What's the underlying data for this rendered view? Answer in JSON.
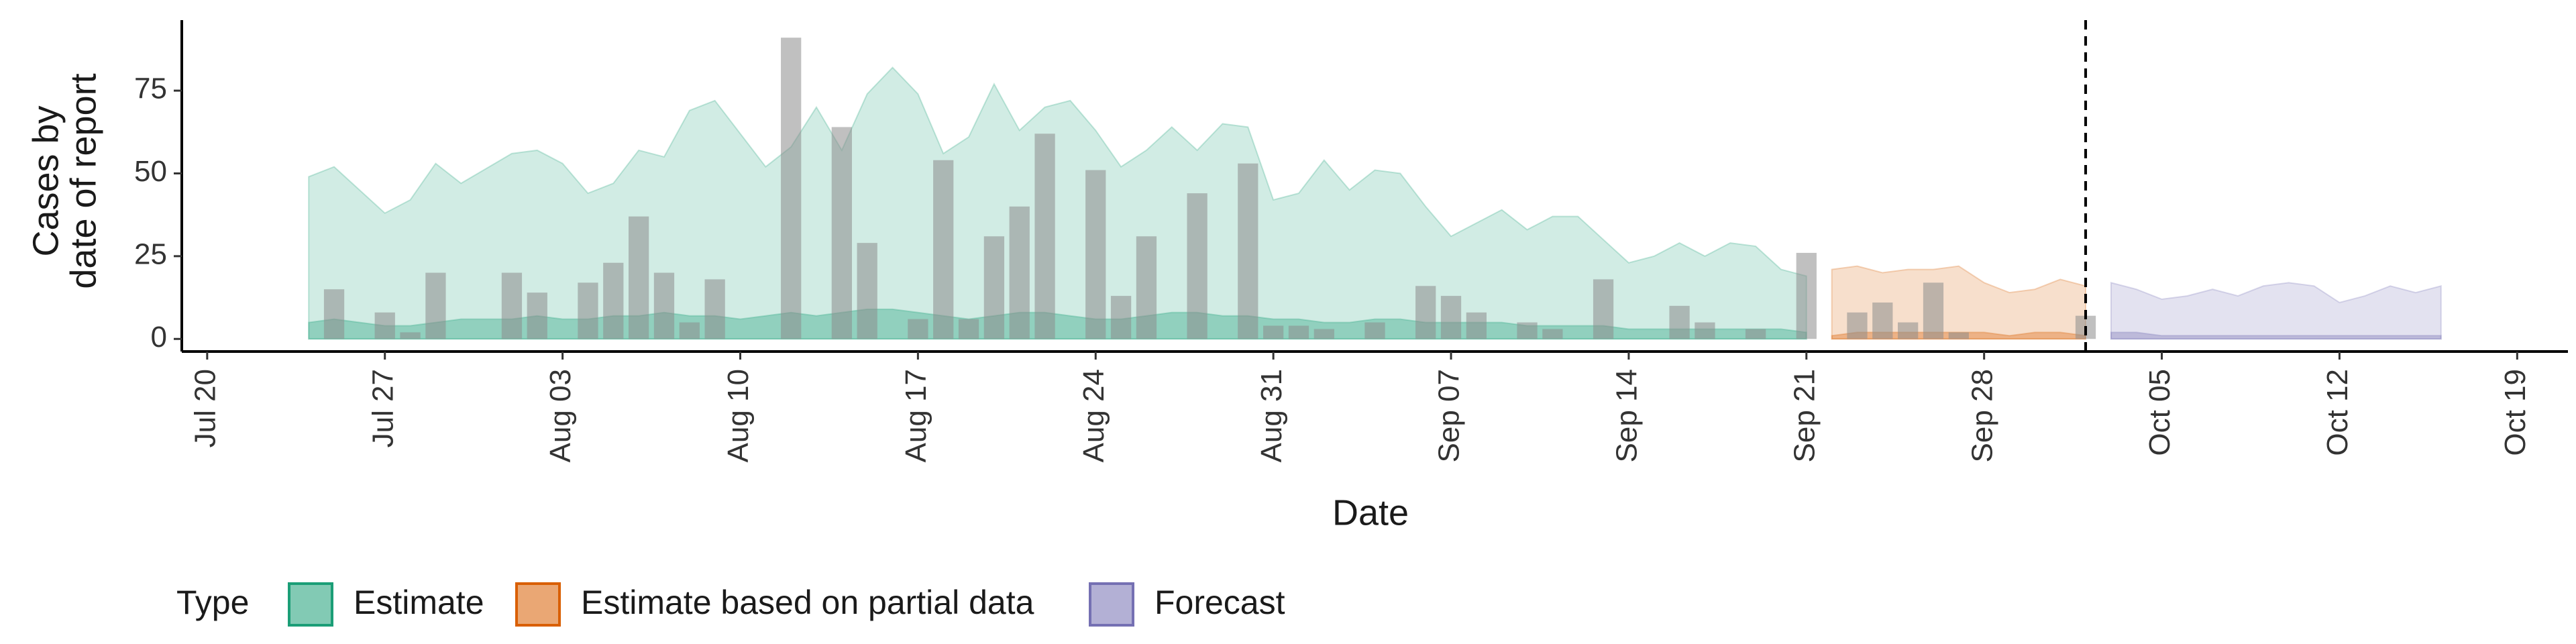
{
  "chart_data": {
    "type": "ribbon",
    "x_label": "Date",
    "y_label": [
      "Cases by",
      "date of report"
    ],
    "legend_title": "Type",
    "legend_position": "bottom",
    "xlim": [
      "Jul 19",
      "Oct 21"
    ],
    "xticks": [
      "Jul 20",
      "Jul 27",
      "Aug 03",
      "Aug 10",
      "Aug 17",
      "Aug 24",
      "Aug 31",
      "Sep 07",
      "Sep 14",
      "Sep 21",
      "Sep 28",
      "Oct 05",
      "Oct 12",
      "Oct 19"
    ],
    "ylim": [
      -3.8,
      96.3
    ],
    "yticks": [
      0,
      25,
      50,
      75
    ],
    "forecast_date": "Oct 2",
    "reported": {
      "color": "#8c8c8c",
      "x": [
        "Jul 25",
        "Jul 27",
        "Jul 28",
        "Jul 29",
        "Aug 1",
        "Aug 2",
        "Aug 4",
        "Aug 5",
        "Aug 6",
        "Aug 7",
        "Aug 8",
        "Aug 9",
        "Aug 12",
        "Aug 14",
        "Aug 15",
        "Aug 17",
        "Aug 18",
        "Aug 19",
        "Aug 20",
        "Aug 21",
        "Aug 22",
        "Aug 24",
        "Aug 25",
        "Aug 26",
        "Aug 28",
        "Aug 30",
        "Aug 31",
        "Sep 1",
        "Sep 2",
        "Sep 4",
        "Sep 6",
        "Sep 7",
        "Sep 8",
        "Sep 10",
        "Sep 11",
        "Sep 13",
        "Sep 16",
        "Sep 17",
        "Sep 19",
        "Sep 21",
        "Sep 23",
        "Sep 24",
        "Sep 25",
        "Sep 26",
        "Sep 27",
        "Oct 2"
      ],
      "values": [
        15,
        8,
        2,
        20,
        20,
        14,
        17,
        23,
        37,
        20,
        5,
        18,
        91,
        64,
        29,
        6,
        54,
        6,
        31,
        40,
        62,
        51,
        13,
        31,
        44,
        53,
        4,
        4,
        3,
        5,
        16,
        13,
        8,
        5,
        3,
        18,
        10,
        5,
        3,
        26,
        8,
        11,
        5,
        17,
        2,
        7
      ]
    },
    "series": [
      {
        "name": "Estimate",
        "color": "#1b9e77",
        "x": [
          "Jul 24",
          "Jul 25",
          "Jul 27",
          "Jul 28",
          "Jul 29",
          "Jul 30",
          "Aug 1",
          "Aug 2",
          "Aug 3",
          "Aug 4",
          "Aug 5",
          "Aug 6",
          "Aug 7",
          "Aug 8",
          "Aug 9",
          "Aug 10",
          "Aug 11",
          "Aug 12",
          "Aug 13",
          "Aug 14",
          "Aug 15",
          "Aug 16",
          "Aug 17",
          "Aug 18",
          "Aug 19",
          "Aug 20",
          "Aug 21",
          "Aug 22",
          "Aug 23",
          "Aug 24",
          "Aug 25",
          "Aug 26",
          "Aug 27",
          "Aug 28",
          "Aug 29",
          "Aug 30",
          "Aug 31",
          "Sep 1",
          "Sep 2",
          "Sep 3",
          "Sep 4",
          "Sep 5",
          "Sep 6",
          "Sep 7",
          "Sep 8",
          "Sep 9",
          "Sep 10",
          "Sep 11",
          "Sep 12",
          "Sep 13",
          "Sep 14",
          "Sep 15",
          "Sep 16",
          "Sep 17",
          "Sep 18",
          "Sep 19",
          "Sep 20",
          "Sep 21"
        ],
        "upper": [
          49,
          52,
          38,
          42,
          53,
          47,
          56,
          57,
          53,
          44,
          47,
          57,
          55,
          69,
          72,
          62,
          52,
          58,
          70,
          57,
          74,
          82,
          74,
          56,
          61,
          77,
          63,
          70,
          72,
          63,
          52,
          57,
          64,
          57,
          65,
          64,
          42,
          44,
          54,
          45,
          51,
          50,
          40,
          31,
          35,
          39,
          33,
          37,
          37,
          30,
          23,
          25,
          29,
          25,
          29,
          28,
          21,
          19
        ],
        "inner": [
          5,
          6,
          4,
          4,
          5,
          6,
          6,
          7,
          6,
          6,
          7,
          7,
          8,
          7,
          7,
          6,
          7,
          8,
          7,
          8,
          9,
          9,
          8,
          7,
          6,
          7,
          8,
          8,
          7,
          6,
          6,
          7,
          8,
          8,
          7,
          7,
          6,
          6,
          5,
          5,
          6,
          6,
          5,
          5,
          5,
          5,
          4,
          4,
          4,
          4,
          3,
          3,
          3,
          3,
          3,
          3,
          3,
          2
        ],
        "lower": [
          0,
          0,
          0,
          0,
          0,
          0,
          0,
          0,
          0,
          0,
          0,
          0,
          0,
          0,
          0,
          0,
          0,
          0,
          0,
          0,
          0,
          0,
          0,
          0,
          0,
          0,
          0,
          0,
          0,
          0,
          0,
          0,
          0,
          0,
          0,
          0,
          0,
          0,
          0,
          0,
          0,
          0,
          0,
          0,
          0,
          0,
          0,
          0,
          0,
          0,
          0,
          0,
          0,
          0,
          0,
          0,
          0,
          0
        ]
      },
      {
        "name": "Estimate based on partial data",
        "color": "#d95f02",
        "x": [
          "Sep 22",
          "Sep 23",
          "Sep 24",
          "Sep 25",
          "Sep 26",
          "Sep 27",
          "Sep 28",
          "Sep 29",
          "Sep 30",
          "Oct 1",
          "Oct 2"
        ],
        "upper": [
          21,
          22,
          20,
          21,
          21,
          22,
          17,
          14,
          15,
          18,
          16
        ],
        "inner": [
          1,
          2,
          2,
          2,
          2,
          2,
          2,
          1,
          2,
          2,
          1
        ],
        "lower": [
          0,
          0,
          0,
          0,
          0,
          0,
          0,
          0,
          0,
          0,
          0
        ]
      },
      {
        "name": "Forecast",
        "color": "#7570b3",
        "x": [
          "Oct 3",
          "Oct 4",
          "Oct 5",
          "Oct 6",
          "Oct 7",
          "Oct 8",
          "Oct 9",
          "Oct 10",
          "Oct 11",
          "Oct 12",
          "Oct 13",
          "Oct 14",
          "Oct 15",
          "Oct 16"
        ],
        "upper": [
          17,
          15,
          12,
          13,
          15,
          13,
          16,
          17,
          16,
          11,
          13,
          16,
          14,
          16
        ],
        "inner": [
          2,
          2,
          1,
          1,
          1,
          1,
          1,
          1,
          1,
          1,
          1,
          1,
          1,
          1
        ],
        "lower": [
          0,
          0,
          0,
          0,
          0,
          0,
          0,
          0,
          0,
          0,
          0,
          0,
          0,
          0
        ]
      }
    ]
  }
}
